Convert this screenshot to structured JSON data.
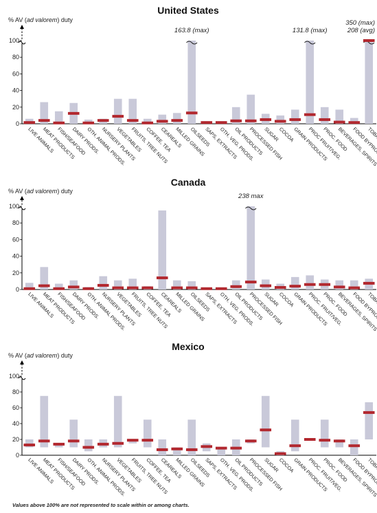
{
  "footnote": "Values above 100% are not represented to scale within or among charts.",
  "colors": {
    "range_bar": "#c9c9d9",
    "avg_marker": "#b2282f",
    "axis": "#000000",
    "note_avg": "#b2282f"
  },
  "chart_data": [
    {
      "type": "bar",
      "title": "United States",
      "ylabel_prefix": "% AV (",
      "ylabel_italic": "ad valorem",
      "ylabel_suffix": ") duty",
      "y_ticks": [
        "0",
        "20",
        "40",
        "60",
        "80",
        "100"
      ],
      "ylim": [
        0,
        100
      ],
      "y_break": true,
      "categories": [
        "LIVE ANIMALS",
        "MEAT PRODUCTS",
        "FISH/SEAFOOD",
        "DAIRY PRODS.",
        "OTH. ANIMAL PRODS.",
        "NURSERY PLANTS",
        "VEGETABLES",
        "FRUITS, TREE NUTS",
        "COFFEE, TEA",
        "CEAREALS",
        "MILLED GRAINS",
        "OILSEEDS",
        "SAPS, EXTRACTS",
        "OTH. VEG. PRODS.",
        "OIL PRODUCTS",
        "PROCESSED FISH",
        "SUGAR",
        "COCOA",
        "GRAIN PRODUCTS",
        "PROC FRUIT/VEG.",
        "PROC. FOOD",
        "BEVERAGES, SPIRITS",
        "FOOD BYPRODUCT",
        "TOBACCO"
      ],
      "series": [
        {
          "name": "max",
          "values": [
            6,
            26,
            15,
            25,
            5,
            6,
            30,
            30,
            6,
            11,
            13,
            163.8,
            3,
            3,
            20,
            35,
            12,
            10,
            17,
            131.8,
            20,
            17,
            7,
            350
          ]
        },
        {
          "name": "avg",
          "values": [
            1.5,
            4,
            1,
            12.5,
            1,
            4,
            9,
            4,
            1,
            3,
            4,
            13,
            1.5,
            1.5,
            3.5,
            3.5,
            5,
            3,
            5,
            11,
            5,
            2,
            1.5,
            208
          ]
        }
      ],
      "annotations": [
        {
          "category": "OILSEEDS",
          "lines": [
            {
              "text": "163.8 (max)",
              "color": "#222222"
            }
          ]
        },
        {
          "category": "PROC FRUIT/VEG.",
          "lines": [
            {
              "text": "131.8 (max)",
              "color": "#222222"
            }
          ]
        },
        {
          "category": "TOBACCO",
          "lines": [
            {
              "text": "350 (max)",
              "color": "#222222"
            },
            {
              "text": "208 (avg)",
              "color": "#b2282f"
            }
          ]
        }
      ]
    },
    {
      "type": "bar",
      "title": "Canada",
      "ylabel_prefix": "% AV (",
      "ylabel_italic": "ad valorem",
      "ylabel_suffix": ") duty",
      "y_ticks": [
        "0",
        "20",
        "40",
        "60",
        "80",
        "100"
      ],
      "ylim": [
        0,
        100
      ],
      "y_break": true,
      "categories": [
        "LIVE ANIMALS",
        "MEAT PRODUCTS",
        "FISH/SEAFOOD",
        "DAIRY PRODS.",
        "OTH. ANIMAL PRODS.",
        "NURSERY PLANTS",
        "VEGETABLES",
        "FRUITS, TREE NUTS",
        "COFFEE, TEA",
        "CEAREALS",
        "MILLED GRAINS",
        "OILSEEDS",
        "SAPS, EXTRACTS",
        "OTH. VEG. PRODS.",
        "OIL PRODUCTS",
        "PROCESSED FISH",
        "SUGAR",
        "COCOA",
        "GRAIN PRODUCTS",
        "PROC. FRUIT/VEG.",
        "PROC. FOOD",
        "BEVERAGES, SPIRITS",
        "FOOD BYPRODUCT",
        "TOBACCO"
      ],
      "series": [
        {
          "name": "max",
          "values": [
            8,
            27,
            7,
            11,
            3,
            16,
            11,
            13,
            4,
            95,
            11,
            10,
            2,
            2,
            11,
            238,
            12,
            7,
            15,
            17,
            12,
            11,
            11,
            13
          ]
        },
        {
          "name": "avg",
          "values": [
            1,
            4.5,
            1,
            3,
            1,
            5,
            2,
            2,
            2,
            14,
            2,
            2,
            1,
            1,
            3.5,
            9,
            4.5,
            2.5,
            4,
            6,
            6,
            3,
            2,
            7.5
          ]
        }
      ],
      "annotations": [
        {
          "category": "PROCESSED FISH",
          "lines": [
            {
              "text": "238 max",
              "color": "#222222"
            }
          ]
        }
      ]
    },
    {
      "type": "bar",
      "title": "Mexico",
      "ylabel_prefix": "% AV (",
      "ylabel_italic": "ad valorem",
      "ylabel_suffix": ") duty",
      "y_ticks": [
        "0",
        "20",
        "40",
        "60",
        "80",
        "100"
      ],
      "ylim": [
        0,
        100
      ],
      "y_break": true,
      "categories": [
        "LIVE ANIMALS",
        "MEAT PRODUCTS",
        "FISH/SEAFOOD",
        "DAIRY PRODS.",
        "OTH. ANIMAL PRODS.",
        "NURSERY PLANTS",
        "VEGETABLES",
        "FRUITS, TREE NUTS",
        "COFFEE, TEA",
        "CEAREALS",
        "MILLED GRAINS",
        "OILSEEDS",
        "SAPS, EXTRACTS",
        "OTH. VEG. PRODS.",
        "OIL PRODUCTS",
        "PROCESSED FISH",
        "SUGAR",
        "COCOA",
        "GRAIN PRODUCTS",
        "PROC. FRUIT/VEG.",
        "PROC. FOOD",
        "BEVERAGES, SPIRITS",
        "FOOD BYPRODUCT",
        "TOBACCO"
      ],
      "series": [
        {
          "name": "max",
          "values": [
            20,
            75,
            15,
            45,
            20,
            20,
            75,
            20,
            45,
            20,
            10,
            45,
            15,
            10,
            20,
            20,
            75,
            5,
            45,
            20,
            45,
            20,
            20,
            67
          ]
        },
        {
          "name": "min",
          "values": [
            10,
            10,
            10,
            10,
            5,
            10,
            10,
            15,
            10,
            0,
            0,
            0,
            5,
            0,
            0,
            15,
            10,
            0,
            5,
            20,
            10,
            10,
            0,
            20
          ]
        },
        {
          "name": "avg",
          "values": [
            13,
            18,
            14,
            18,
            10,
            14,
            15,
            19,
            19,
            7,
            8,
            7,
            11,
            9,
            9,
            18,
            32,
            2,
            12,
            20,
            19,
            18,
            12,
            54
          ]
        }
      ],
      "annotations": []
    }
  ]
}
